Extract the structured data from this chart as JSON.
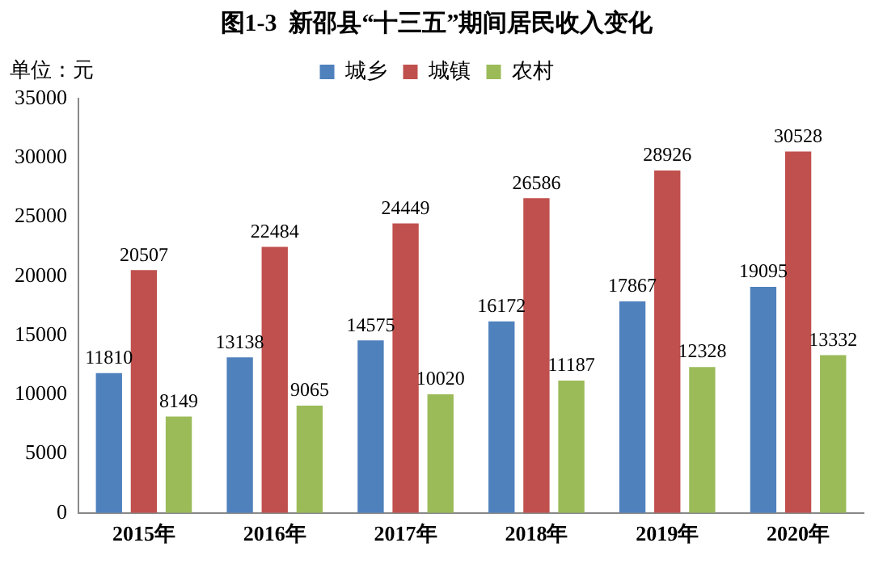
{
  "chart_data": {
    "type": "bar",
    "title": "图1-3  新邵县“十三五”期间居民收入变化",
    "ylabel": "单位：元",
    "categories": [
      "2015年",
      "2016年",
      "2017年",
      "2018年",
      "2019年",
      "2020年"
    ],
    "series": [
      {
        "name": "城乡",
        "color": "#4f81bd",
        "values": [
          11810,
          13138,
          14575,
          16172,
          17867,
          19095
        ]
      },
      {
        "name": "城镇",
        "color": "#c0504d",
        "values": [
          20507,
          22484,
          24449,
          26586,
          28926,
          30528
        ]
      },
      {
        "name": "农村",
        "color": "#9bbb59",
        "values": [
          8149,
          9065,
          10020,
          11187,
          12328,
          13332
        ]
      }
    ],
    "ylim": [
      0,
      35000
    ],
    "yticks": [
      0,
      5000,
      10000,
      15000,
      20000,
      25000,
      30000,
      35000
    ],
    "grid": false,
    "legend": "top",
    "data_labels": true
  }
}
